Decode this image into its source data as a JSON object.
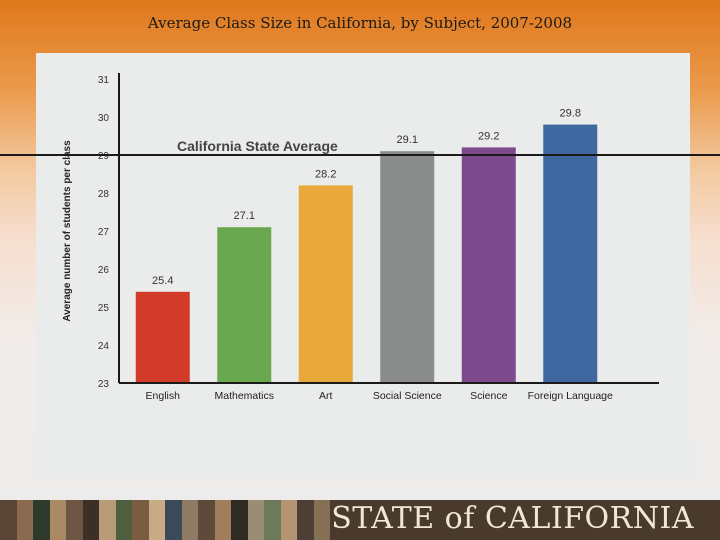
{
  "page": {
    "title": "Average Class Size in California, by Subject, 2007-2008"
  },
  "footer": {
    "brand": "STATE of CALIFORNIA"
  },
  "chart_data": {
    "type": "bar",
    "title": "",
    "xlabel": "",
    "ylabel": "Average number of students per class",
    "ylim": [
      23,
      31
    ],
    "yticks": [
      23,
      24,
      25,
      26,
      27,
      28,
      29,
      30,
      31
    ],
    "grid": false,
    "categories": [
      "English",
      "Mathematics",
      "Art",
      "Social Science",
      "Science",
      "Foreign Language"
    ],
    "values": [
      25.4,
      27.1,
      28.2,
      29.1,
      29.2,
      29.8
    ],
    "value_labels": [
      "25.4",
      "27.1",
      "28.2",
      "29.1",
      "29.2",
      "29.8"
    ],
    "bar_colors": [
      "#d23a2a",
      "#6aa84f",
      "#e8a93a",
      "#8a8d8c",
      "#7e4a8e",
      "#3f67a0"
    ],
    "reference_line": {
      "label": "California State Average",
      "value": 29
    }
  }
}
